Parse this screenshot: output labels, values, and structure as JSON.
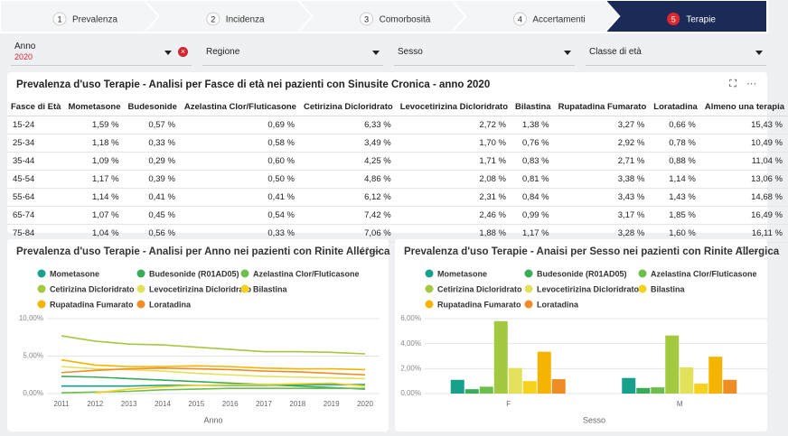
{
  "steps": [
    {
      "number": "1",
      "label": "Prevalenza"
    },
    {
      "number": "2",
      "label": "Incidenza"
    },
    {
      "number": "3",
      "label": "Comorbosità"
    },
    {
      "number": "4",
      "label": "Accertamenti"
    },
    {
      "number": "5",
      "label": "Terapie"
    }
  ],
  "filters": [
    {
      "label": "Anno",
      "value": "2020"
    },
    {
      "label": "Regione"
    },
    {
      "label": "Sesso"
    },
    {
      "label": "Classe di età"
    }
  ],
  "table": {
    "title": "Prevalenza d'uso Terapie - Analisi per Fasce di età nei pazienti con Sinusite Cronica - anno 2020",
    "columns": [
      "Fasce di Età",
      "Mometasone",
      "Budesonide",
      "Azelastina Clor/Fluticasone",
      "Cetirizina Dicloridrato",
      "Levocetirizina Dicloridrato",
      "Bilastina",
      "Rupatadina Fumarato",
      "Loratadina",
      "Almeno una terapia"
    ],
    "rows": [
      [
        "15-24",
        "1,59 %",
        "0,57 %",
        "0,69 %",
        "6,33 %",
        "2,72 %",
        "1,38 %",
        "3,27 %",
        "0,66 %",
        "15,43 %"
      ],
      [
        "25-34",
        "1,18 %",
        "0,33 %",
        "0,58 %",
        "3,49 %",
        "1,70 %",
        "0,76 %",
        "2,92 %",
        "0,78 %",
        "10,49 %"
      ],
      [
        "35-44",
        "1,09 %",
        "0,29 %",
        "0,60 %",
        "4,25 %",
        "1,71 %",
        "0,83 %",
        "2,71 %",
        "0,88 %",
        "11,04 %"
      ],
      [
        "45-54",
        "1,17 %",
        "0,39 %",
        "0,50 %",
        "4,86 %",
        "2,08 %",
        "0,81 %",
        "3,38 %",
        "1,14 %",
        "13,06 %"
      ],
      [
        "55-64",
        "1,14 %",
        "0,41 %",
        "0,41 %",
        "6,12 %",
        "2,31 %",
        "0,84 %",
        "3,43 %",
        "1,43 %",
        "14,68 %"
      ],
      [
        "65-74",
        "1,07 %",
        "0,45 %",
        "0,54 %",
        "7,42 %",
        "2,46 %",
        "0,99 %",
        "3,17 %",
        "1,85 %",
        "16,49 %"
      ],
      [
        "75-84",
        "1,04 %",
        "0,56 %",
        "0,33 %",
        "7,06 %",
        "1,88 %",
        "1,17 %",
        "3,28 %",
        "1,60 %",
        "16,11 %"
      ]
    ]
  },
  "chart_data": [
    {
      "type": "line",
      "title": "Prevalenza d'uso Terapie - Analisi per Anno nei pazienti con Rinite Allergica",
      "x_label": "Anno",
      "x": [
        2011,
        2012,
        2013,
        2014,
        2015,
        2016,
        2017,
        2018,
        2019,
        2020
      ],
      "xlim": [
        2011,
        2020
      ],
      "ylim": [
        0,
        10
      ],
      "yticks": [
        {
          "value": 0,
          "label": "0,00%"
        },
        {
          "value": 5,
          "label": "5,00%"
        },
        {
          "value": 10,
          "label": "10,00%"
        }
      ],
      "grid": true,
      "series": [
        {
          "name": "Mometasone",
          "color": "#17a08c",
          "values": [
            1.0,
            1.0,
            1.0,
            1.1,
            1.1,
            1.1,
            1.1,
            1.2,
            1.2,
            1.2
          ]
        },
        {
          "name": "Budesonide (R01AD05)",
          "color": "#3aab58",
          "values": [
            2.3,
            2.2,
            2.0,
            1.8,
            1.6,
            1.4,
            1.2,
            1.0,
            0.8,
            0.6
          ]
        },
        {
          "name": "Azelastina Clor/Fluticasone",
          "color": "#6cbf4a",
          "values": [
            0.1,
            0.2,
            0.3,
            0.5,
            0.6,
            0.7,
            0.7,
            0.7,
            0.7,
            0.7
          ]
        },
        {
          "name": "Cetirizina Dicloridrato",
          "color": "#a3c940",
          "values": [
            7.7,
            7.0,
            6.6,
            6.5,
            6.2,
            5.9,
            5.6,
            5.6,
            5.5,
            5.3
          ]
        },
        {
          "name": "Levocetirizina Dicloridrato",
          "color": "#e3e05a",
          "values": [
            3.6,
            3.3,
            3.2,
            3.0,
            2.7,
            2.5,
            2.3,
            2.2,
            2.1,
            2.0
          ]
        },
        {
          "name": "Bilastina",
          "color": "#f7d21c",
          "values": [
            null,
            0.1,
            0.6,
            0.9,
            1.1,
            1.2,
            1.2,
            1.3,
            1.4,
            1.0
          ]
        },
        {
          "name": "Rupatadina Fumarato",
          "color": "#f5b400",
          "values": [
            4.5,
            3.8,
            3.6,
            3.6,
            3.7,
            3.6,
            3.4,
            3.3,
            3.3,
            3.2
          ]
        },
        {
          "name": "Loratadina",
          "color": "#f08c24",
          "values": [
            2.8,
            3.1,
            3.3,
            3.4,
            3.3,
            3.2,
            3.0,
            2.9,
            2.7,
            2.5
          ]
        }
      ]
    },
    {
      "type": "bar",
      "title": "Prevalenza d'uso Terapie - Anaisi per Sesso nei pazienti con Rinite Allergica",
      "x_label": "Sesso",
      "categories": [
        "F",
        "M"
      ],
      "ylim": [
        0,
        6
      ],
      "yticks": [
        {
          "value": 0,
          "label": "0,00%"
        },
        {
          "value": 2,
          "label": "2,00%"
        },
        {
          "value": 4,
          "label": "4,00%"
        },
        {
          "value": 6,
          "label": "6,00%"
        }
      ],
      "grid": true,
      "series": [
        {
          "name": "Mometasone",
          "color": "#17a08c",
          "values": [
            1.1,
            1.25
          ]
        },
        {
          "name": "Budesonide (R01AD05)",
          "color": "#3aab58",
          "values": [
            0.35,
            0.45
          ]
        },
        {
          "name": "Azelastina Clor/Fluticasone",
          "color": "#6cbf4a",
          "values": [
            0.55,
            0.5
          ]
        },
        {
          "name": "Cetirizina Dicloridrato",
          "color": "#a3c940",
          "values": [
            5.8,
            4.65
          ]
        },
        {
          "name": "Levocetirizina Dicloridrato",
          "color": "#e3e05a",
          "values": [
            2.05,
            2.1
          ]
        },
        {
          "name": "Bilastina",
          "color": "#f7d21c",
          "values": [
            1.0,
            0.8
          ]
        },
        {
          "name": "Rupatadina Fumarato",
          "color": "#f5b400",
          "values": [
            3.35,
            2.95
          ]
        },
        {
          "name": "Loratadina",
          "color": "#f08c24",
          "values": [
            1.15,
            1.1
          ]
        }
      ]
    }
  ]
}
